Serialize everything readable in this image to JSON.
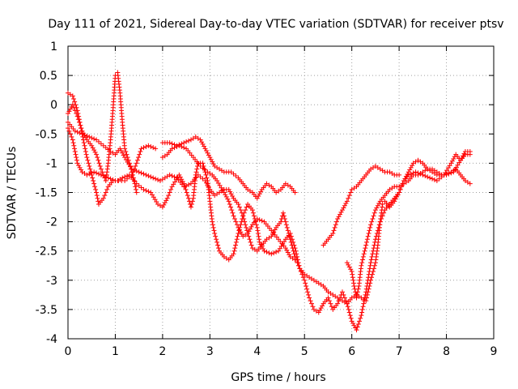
{
  "chart_data": {
    "type": "scatter",
    "title": "Day 111 of 2021, Sidereal Day-to-day VTEC variation (SDTVAR) for receiver ptsv",
    "xlabel": "GPS time / hours",
    "ylabel": "SDTVAR / TECUs",
    "xlim": [
      0,
      9
    ],
    "ylim": [
      -4,
      1
    ],
    "xticks": [
      "0",
      "1",
      "2",
      "3",
      "4",
      "5",
      "6",
      "7",
      "8",
      "9"
    ],
    "yticks": [
      "1",
      "0.5",
      "0",
      "-0.5",
      "-1",
      "-1.5",
      "-2",
      "-2.5",
      "-3",
      "-3.5",
      "-4"
    ],
    "grid": true,
    "marker": "+",
    "color": "#ff0000",
    "series": [
      {
        "values": [
          [
            0.0,
            0.2
          ],
          [
            0.1,
            0.15
          ],
          [
            0.2,
            -0.1
          ],
          [
            0.3,
            -0.5
          ],
          [
            0.4,
            -0.9
          ],
          [
            0.5,
            -1.2
          ],
          [
            0.6,
            -1.5
          ],
          [
            0.65,
            -1.7
          ],
          [
            0.75,
            -1.6
          ],
          [
            0.85,
            -1.4
          ],
          [
            0.95,
            -1.3
          ],
          [
            1.05,
            -1.3
          ],
          [
            1.15,
            -1.25
          ],
          [
            1.3,
            -1.2
          ],
          [
            1.45,
            -1.35
          ],
          [
            1.6,
            -1.45
          ],
          [
            1.75,
            -1.5
          ],
          [
            1.9,
            -1.7
          ],
          [
            2.0,
            -1.75
          ],
          [
            2.1,
            -1.6
          ],
          [
            2.2,
            -1.4
          ],
          [
            2.35,
            -1.2
          ],
          [
            2.45,
            -1.35
          ],
          [
            2.55,
            -1.6
          ],
          [
            2.6,
            -1.75
          ],
          [
            2.65,
            -1.6
          ],
          [
            2.7,
            -1.2
          ],
          [
            2.75,
            -1.0
          ],
          [
            2.85,
            -1.0
          ],
          [
            2.95,
            -1.3
          ],
          [
            3.0,
            -1.65
          ],
          [
            3.05,
            -2.0
          ],
          [
            3.1,
            -2.2
          ],
          [
            3.2,
            -2.5
          ],
          [
            3.3,
            -2.6
          ],
          [
            3.4,
            -2.65
          ],
          [
            3.5,
            -2.55
          ],
          [
            3.6,
            -2.2
          ],
          [
            3.7,
            -1.9
          ],
          [
            3.8,
            -1.7
          ],
          [
            3.9,
            -1.8
          ],
          [
            4.0,
            -2.1
          ],
          [
            4.05,
            -2.35
          ],
          [
            4.15,
            -2.5
          ],
          [
            4.3,
            -2.55
          ],
          [
            4.45,
            -2.5
          ],
          [
            4.6,
            -2.3
          ],
          [
            4.7,
            -2.2
          ],
          [
            4.8,
            -2.45
          ],
          [
            4.9,
            -2.8
          ],
          [
            5.0,
            -3.0
          ],
          [
            5.1,
            -3.3
          ],
          [
            5.2,
            -3.5
          ],
          [
            5.3,
            -3.55
          ],
          [
            5.4,
            -3.4
          ],
          [
            5.5,
            -3.3
          ],
          [
            5.6,
            -3.5
          ],
          [
            5.7,
            -3.4
          ],
          [
            5.8,
            -3.2
          ],
          [
            5.9,
            -3.4
          ],
          [
            6.0,
            -3.7
          ],
          [
            6.1,
            -3.85
          ],
          [
            6.2,
            -3.6
          ],
          [
            6.3,
            -3.2
          ],
          [
            6.4,
            -2.7
          ],
          [
            6.5,
            -2.3
          ],
          [
            6.6,
            -2.0
          ],
          [
            6.7,
            -1.8
          ],
          [
            6.8,
            -1.7
          ],
          [
            6.9,
            -1.6
          ],
          [
            7.0,
            -1.5
          ],
          [
            7.1,
            -1.3
          ],
          [
            7.2,
            -1.15
          ],
          [
            7.3,
            -1.0
          ],
          [
            7.4,
            -0.95
          ],
          [
            7.5,
            -1.0
          ],
          [
            7.6,
            -1.1
          ],
          [
            7.7,
            -1.15
          ],
          [
            7.8,
            -1.2
          ],
          [
            7.95,
            -1.2
          ],
          [
            8.1,
            -1.15
          ],
          [
            8.2,
            -1.1
          ],
          [
            8.3,
            -1.2
          ],
          [
            8.4,
            -1.3
          ],
          [
            8.5,
            -1.35
          ]
        ]
      },
      {
        "values": [
          [
            0.0,
            -0.15
          ],
          [
            0.1,
            0.0
          ],
          [
            0.2,
            -0.2
          ],
          [
            0.3,
            -0.45
          ],
          [
            0.4,
            -0.6
          ],
          [
            0.5,
            -0.7
          ],
          [
            0.6,
            -0.85
          ],
          [
            0.7,
            -1.1
          ],
          [
            0.8,
            -1.3
          ],
          [
            0.85,
            -1.0
          ],
          [
            0.9,
            -0.6
          ],
          [
            0.95,
            -0.1
          ],
          [
            1.0,
            0.5
          ],
          [
            1.05,
            0.55
          ],
          [
            1.1,
            0.2
          ],
          [
            1.15,
            -0.3
          ],
          [
            1.2,
            -0.75
          ],
          [
            1.3,
            -1.0
          ],
          [
            1.4,
            -1.3
          ],
          [
            1.45,
            -1.5
          ]
        ]
      },
      {
        "values": [
          [
            0.0,
            -0.4
          ],
          [
            0.1,
            -0.6
          ],
          [
            0.2,
            -1.0
          ],
          [
            0.3,
            -1.15
          ],
          [
            0.4,
            -1.2
          ],
          [
            0.55,
            -1.15
          ],
          [
            0.7,
            -1.2
          ],
          [
            0.85,
            -1.25
          ],
          [
            1.0,
            -1.3
          ],
          [
            1.2,
            -1.3
          ],
          [
            1.35,
            -1.2
          ],
          [
            1.45,
            -1.0
          ],
          [
            1.55,
            -0.75
          ],
          [
            1.7,
            -0.7
          ],
          [
            1.85,
            -0.75
          ]
        ]
      },
      {
        "values": [
          [
            0.0,
            -0.3
          ],
          [
            0.15,
            -0.45
          ],
          [
            0.3,
            -0.5
          ],
          [
            0.45,
            -0.55
          ],
          [
            0.6,
            -0.6
          ],
          [
            0.75,
            -0.7
          ],
          [
            0.9,
            -0.8
          ],
          [
            1.0,
            -0.85
          ],
          [
            1.1,
            -0.75
          ],
          [
            1.2,
            -0.9
          ],
          [
            1.35,
            -1.1
          ],
          [
            1.5,
            -1.15
          ],
          [
            1.65,
            -1.2
          ],
          [
            1.8,
            -1.25
          ],
          [
            1.95,
            -1.3
          ],
          [
            2.05,
            -1.25
          ],
          [
            2.15,
            -1.2
          ],
          [
            2.3,
            -1.25
          ],
          [
            2.45,
            -1.4
          ],
          [
            2.6,
            -1.35
          ],
          [
            2.75,
            -1.2
          ],
          [
            2.9,
            -1.3
          ],
          [
            3.0,
            -1.45
          ],
          [
            3.1,
            -1.55
          ],
          [
            3.2,
            -1.5
          ],
          [
            3.3,
            -1.45
          ],
          [
            3.4,
            -1.45
          ],
          [
            3.5,
            -1.6
          ],
          [
            3.6,
            -1.7
          ],
          [
            3.7,
            -1.9
          ],
          [
            3.8,
            -2.2
          ],
          [
            3.9,
            -2.45
          ],
          [
            4.0,
            -2.5
          ],
          [
            4.1,
            -2.4
          ],
          [
            4.2,
            -2.3
          ],
          [
            4.3,
            -2.25
          ],
          [
            4.4,
            -2.1
          ],
          [
            4.5,
            -2.0
          ],
          [
            4.55,
            -1.85
          ],
          [
            4.6,
            -2.0
          ],
          [
            4.7,
            -2.3
          ],
          [
            4.8,
            -2.6
          ],
          [
            4.9,
            -2.8
          ],
          [
            5.0,
            -2.9
          ],
          [
            5.1,
            -2.95
          ],
          [
            5.2,
            -3.0
          ],
          [
            5.3,
            -3.05
          ],
          [
            5.4,
            -3.1
          ],
          [
            5.5,
            -3.2
          ],
          [
            5.6,
            -3.25
          ],
          [
            5.7,
            -3.3
          ],
          [
            5.8,
            -3.35
          ],
          [
            5.9,
            -3.4
          ],
          [
            6.0,
            -3.3
          ],
          [
            6.1,
            -3.25
          ],
          [
            6.2,
            -3.3
          ],
          [
            6.3,
            -3.35
          ],
          [
            6.4,
            -3.0
          ],
          [
            6.5,
            -2.7
          ],
          [
            6.55,
            -2.4
          ],
          [
            6.6,
            -2.0
          ],
          [
            6.65,
            -1.7
          ],
          [
            6.7,
            -1.65
          ],
          [
            6.8,
            -1.75
          ],
          [
            6.9,
            -1.65
          ],
          [
            7.0,
            -1.5
          ],
          [
            7.1,
            -1.3
          ],
          [
            7.2,
            -1.2
          ],
          [
            7.35,
            -1.15
          ],
          [
            7.5,
            -1.2
          ],
          [
            7.65,
            -1.25
          ],
          [
            7.8,
            -1.3
          ],
          [
            7.95,
            -1.2
          ],
          [
            8.1,
            -1.0
          ],
          [
            8.2,
            -0.85
          ],
          [
            8.3,
            -0.95
          ],
          [
            8.4,
            -0.85
          ],
          [
            8.5,
            -0.85
          ]
        ]
      },
      {
        "values": [
          [
            2.0,
            -0.65
          ],
          [
            2.15,
            -0.65
          ],
          [
            2.3,
            -0.7
          ],
          [
            2.45,
            -0.65
          ],
          [
            2.6,
            -0.6
          ],
          [
            2.7,
            -0.55
          ],
          [
            2.8,
            -0.6
          ],
          [
            2.9,
            -0.75
          ],
          [
            3.0,
            -0.9
          ],
          [
            3.1,
            -1.05
          ],
          [
            3.2,
            -1.1
          ],
          [
            3.3,
            -1.15
          ],
          [
            3.45,
            -1.15
          ],
          [
            3.6,
            -1.25
          ],
          [
            3.7,
            -1.35
          ],
          [
            3.8,
            -1.45
          ],
          [
            3.9,
            -1.5
          ],
          [
            4.0,
            -1.6
          ],
          [
            4.1,
            -1.45
          ],
          [
            4.2,
            -1.35
          ],
          [
            4.3,
            -1.4
          ],
          [
            4.4,
            -1.5
          ],
          [
            4.5,
            -1.45
          ],
          [
            4.6,
            -1.35
          ],
          [
            4.7,
            -1.4
          ],
          [
            4.8,
            -1.5
          ]
        ]
      },
      {
        "values": [
          [
            2.0,
            -0.9
          ],
          [
            2.1,
            -0.85
          ],
          [
            2.2,
            -0.75
          ],
          [
            2.35,
            -0.7
          ],
          [
            2.5,
            -0.75
          ],
          [
            2.65,
            -0.9
          ],
          [
            2.8,
            -1.05
          ],
          [
            2.95,
            -1.15
          ],
          [
            3.05,
            -1.2
          ],
          [
            3.15,
            -1.3
          ],
          [
            3.3,
            -1.5
          ],
          [
            3.4,
            -1.65
          ],
          [
            3.5,
            -1.9
          ],
          [
            3.6,
            -2.1
          ],
          [
            3.7,
            -2.25
          ],
          [
            3.8,
            -2.2
          ],
          [
            3.9,
            -2.05
          ],
          [
            4.0,
            -1.95
          ],
          [
            4.15,
            -2.0
          ],
          [
            4.3,
            -2.15
          ],
          [
            4.45,
            -2.3
          ],
          [
            4.6,
            -2.45
          ],
          [
            4.7,
            -2.6
          ],
          [
            4.8,
            -2.65
          ]
        ]
      },
      {
        "values": [
          [
            5.4,
            -2.4
          ],
          [
            5.5,
            -2.3
          ],
          [
            5.6,
            -2.2
          ],
          [
            5.7,
            -1.95
          ],
          [
            5.8,
            -1.8
          ],
          [
            5.9,
            -1.65
          ],
          [
            6.0,
            -1.45
          ],
          [
            6.1,
            -1.4
          ],
          [
            6.2,
            -1.3
          ],
          [
            6.3,
            -1.2
          ],
          [
            6.4,
            -1.1
          ],
          [
            6.5,
            -1.05
          ],
          [
            6.6,
            -1.1
          ],
          [
            6.7,
            -1.15
          ],
          [
            6.8,
            -1.15
          ],
          [
            6.9,
            -1.2
          ],
          [
            7.0,
            -1.2
          ]
        ]
      },
      {
        "values": [
          [
            5.9,
            -2.7
          ],
          [
            6.0,
            -2.85
          ],
          [
            6.05,
            -3.1
          ],
          [
            6.1,
            -3.3
          ],
          [
            6.15,
            -3.1
          ],
          [
            6.2,
            -2.75
          ],
          [
            6.3,
            -2.4
          ],
          [
            6.4,
            -2.05
          ],
          [
            6.5,
            -1.8
          ],
          [
            6.6,
            -1.65
          ],
          [
            6.7,
            -1.55
          ],
          [
            6.8,
            -1.45
          ],
          [
            6.9,
            -1.4
          ],
          [
            7.0,
            -1.4
          ],
          [
            7.1,
            -1.35
          ],
          [
            7.2,
            -1.3
          ],
          [
            7.3,
            -1.2
          ],
          [
            7.4,
            -1.2
          ],
          [
            7.5,
            -1.15
          ],
          [
            7.6,
            -1.1
          ],
          [
            7.7,
            -1.1
          ],
          [
            7.8,
            -1.15
          ],
          [
            7.9,
            -1.2
          ],
          [
            8.0,
            -1.2
          ],
          [
            8.15,
            -1.15
          ],
          [
            8.3,
            -0.95
          ],
          [
            8.4,
            -0.8
          ],
          [
            8.5,
            -0.8
          ]
        ]
      }
    ]
  }
}
